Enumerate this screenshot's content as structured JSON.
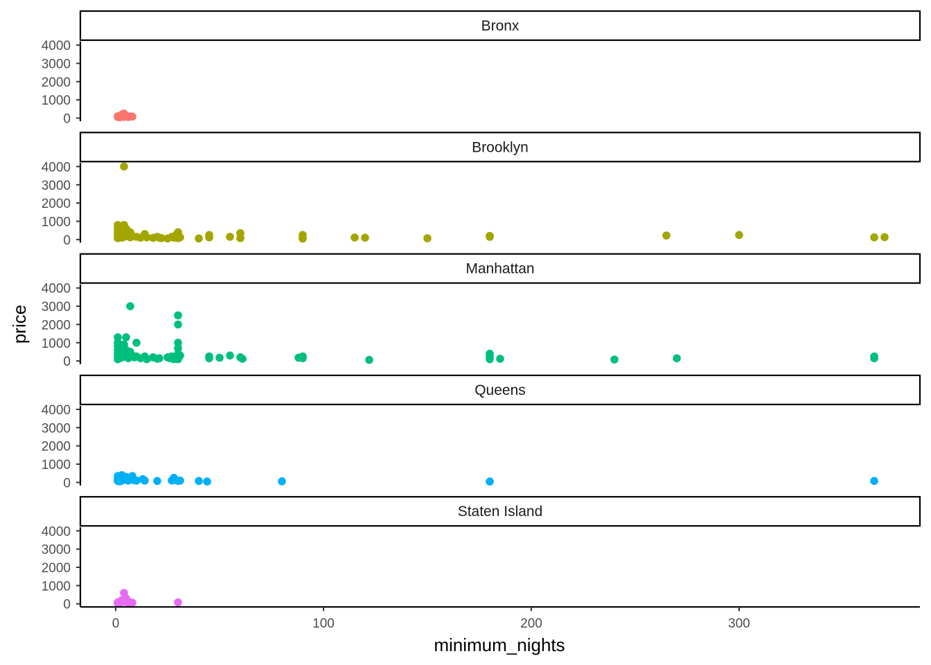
{
  "chart_data": {
    "type": "scatter",
    "facet_by": "neighbourhood_group",
    "xlabel": "minimum_nights",
    "ylabel": "price",
    "xlim": [
      -17,
      387
    ],
    "ylim": [
      -170,
      4270
    ],
    "x_ticks": [
      0,
      100,
      200,
      300
    ],
    "y_ticks": [
      0,
      1000,
      2000,
      3000,
      4000
    ],
    "grid": false,
    "legend": "none",
    "panels": [
      {
        "name": "Bronx",
        "color": "#F8766D",
        "points": [
          [
            1,
            60
          ],
          [
            1,
            100
          ],
          [
            2,
            45
          ],
          [
            2,
            120
          ],
          [
            2,
            80
          ],
          [
            3,
            200
          ],
          [
            3,
            150
          ],
          [
            3,
            90
          ],
          [
            4,
            250
          ],
          [
            4,
            70
          ],
          [
            5,
            110
          ],
          [
            5,
            130
          ],
          [
            6,
            60
          ],
          [
            7,
            90
          ],
          [
            8,
            80
          ]
        ]
      },
      {
        "name": "Brooklyn",
        "color": "#A3A500",
        "points": [
          [
            1,
            800
          ],
          [
            1,
            600
          ],
          [
            1,
            400
          ],
          [
            1,
            250
          ],
          [
            1,
            150
          ],
          [
            1,
            80
          ],
          [
            2,
            700
          ],
          [
            2,
            500
          ],
          [
            2,
            300
          ],
          [
            2,
            120
          ],
          [
            3,
            450
          ],
          [
            3,
            200
          ],
          [
            3,
            100
          ],
          [
            4,
            4000
          ],
          [
            4,
            800
          ],
          [
            4,
            350
          ],
          [
            4,
            150
          ],
          [
            5,
            600
          ],
          [
            5,
            250
          ],
          [
            6,
            300
          ],
          [
            7,
            400
          ],
          [
            7,
            120
          ],
          [
            8,
            200
          ],
          [
            10,
            150
          ],
          [
            12,
            100
          ],
          [
            14,
            300
          ],
          [
            15,
            120
          ],
          [
            18,
            90
          ],
          [
            20,
            150
          ],
          [
            21,
            100
          ],
          [
            22,
            80
          ],
          [
            25,
            60
          ],
          [
            27,
            150
          ],
          [
            28,
            100
          ],
          [
            29,
            250
          ],
          [
            30,
            400
          ],
          [
            30,
            300
          ],
          [
            30,
            150
          ],
          [
            30,
            80
          ],
          [
            31,
            120
          ],
          [
            40,
            60
          ],
          [
            45,
            250
          ],
          [
            45,
            120
          ],
          [
            55,
            150
          ],
          [
            60,
            350
          ],
          [
            60,
            80
          ],
          [
            90,
            250
          ],
          [
            90,
            100
          ],
          [
            90,
            50
          ],
          [
            115,
            110
          ],
          [
            120,
            100
          ],
          [
            150,
            70
          ],
          [
            180,
            200
          ],
          [
            180,
            150
          ],
          [
            265,
            220
          ],
          [
            300,
            250
          ],
          [
            365,
            120
          ],
          [
            370,
            130
          ]
        ]
      },
      {
        "name": "Manhattan",
        "color": "#00BF7D",
        "points": [
          [
            1,
            1300
          ],
          [
            1,
            1000
          ],
          [
            1,
            800
          ],
          [
            1,
            600
          ],
          [
            1,
            400
          ],
          [
            1,
            250
          ],
          [
            1,
            100
          ],
          [
            2,
            900
          ],
          [
            2,
            700
          ],
          [
            2,
            500
          ],
          [
            2,
            300
          ],
          [
            2,
            150
          ],
          [
            3,
            650
          ],
          [
            3,
            400
          ],
          [
            3,
            200
          ],
          [
            4,
            900
          ],
          [
            4,
            500
          ],
          [
            4,
            250
          ],
          [
            5,
            1300
          ],
          [
            5,
            600
          ],
          [
            5,
            300
          ],
          [
            6,
            400
          ],
          [
            6,
            150
          ],
          [
            7,
            3000
          ],
          [
            7,
            500
          ],
          [
            8,
            300
          ],
          [
            9,
            200
          ],
          [
            10,
            1000
          ],
          [
            10,
            250
          ],
          [
            12,
            150
          ],
          [
            14,
            250
          ],
          [
            15,
            100
          ],
          [
            18,
            200
          ],
          [
            20,
            120
          ],
          [
            21,
            150
          ],
          [
            25,
            200
          ],
          [
            26,
            150
          ],
          [
            27,
            250
          ],
          [
            28,
            100
          ],
          [
            29,
            200
          ],
          [
            30,
            2500
          ],
          [
            30,
            2000
          ],
          [
            30,
            1000
          ],
          [
            30,
            700
          ],
          [
            30,
            400
          ],
          [
            30,
            200
          ],
          [
            30,
            100
          ],
          [
            31,
            300
          ],
          [
            45,
            250
          ],
          [
            45,
            150
          ],
          [
            50,
            180
          ],
          [
            55,
            300
          ],
          [
            60,
            200
          ],
          [
            61,
            120
          ],
          [
            88,
            180
          ],
          [
            90,
            250
          ],
          [
            90,
            150
          ],
          [
            122,
            60
          ],
          [
            180,
            400
          ],
          [
            180,
            250
          ],
          [
            180,
            100
          ],
          [
            185,
            120
          ],
          [
            240,
            80
          ],
          [
            270,
            150
          ],
          [
            365,
            250
          ],
          [
            365,
            150
          ]
        ]
      },
      {
        "name": "Queens",
        "color": "#00B0F6",
        "points": [
          [
            1,
            350
          ],
          [
            1,
            200
          ],
          [
            1,
            80
          ],
          [
            2,
            300
          ],
          [
            2,
            150
          ],
          [
            2,
            60
          ],
          [
            3,
            400
          ],
          [
            3,
            250
          ],
          [
            3,
            100
          ],
          [
            4,
            200
          ],
          [
            5,
            300
          ],
          [
            5,
            150
          ],
          [
            6,
            100
          ],
          [
            7,
            250
          ],
          [
            8,
            350
          ],
          [
            8,
            150
          ],
          [
            9,
            120
          ],
          [
            10,
            100
          ],
          [
            13,
            180
          ],
          [
            14,
            100
          ],
          [
            20,
            80
          ],
          [
            27,
            100
          ],
          [
            28,
            250
          ],
          [
            29,
            120
          ],
          [
            30,
            80
          ],
          [
            31,
            100
          ],
          [
            40,
            80
          ],
          [
            44,
            50
          ],
          [
            80,
            60
          ],
          [
            180,
            50
          ],
          [
            365,
            80
          ]
        ]
      },
      {
        "name": "Staten Island",
        "color": "#E76BF3",
        "points": [
          [
            1,
            40
          ],
          [
            1,
            80
          ],
          [
            2,
            60
          ],
          [
            2,
            120
          ],
          [
            3,
            200
          ],
          [
            3,
            100
          ],
          [
            4,
            600
          ],
          [
            4,
            150
          ],
          [
            5,
            300
          ],
          [
            5,
            90
          ],
          [
            6,
            50
          ],
          [
            7,
            80
          ],
          [
            8,
            60
          ],
          [
            30,
            80
          ]
        ]
      }
    ]
  }
}
